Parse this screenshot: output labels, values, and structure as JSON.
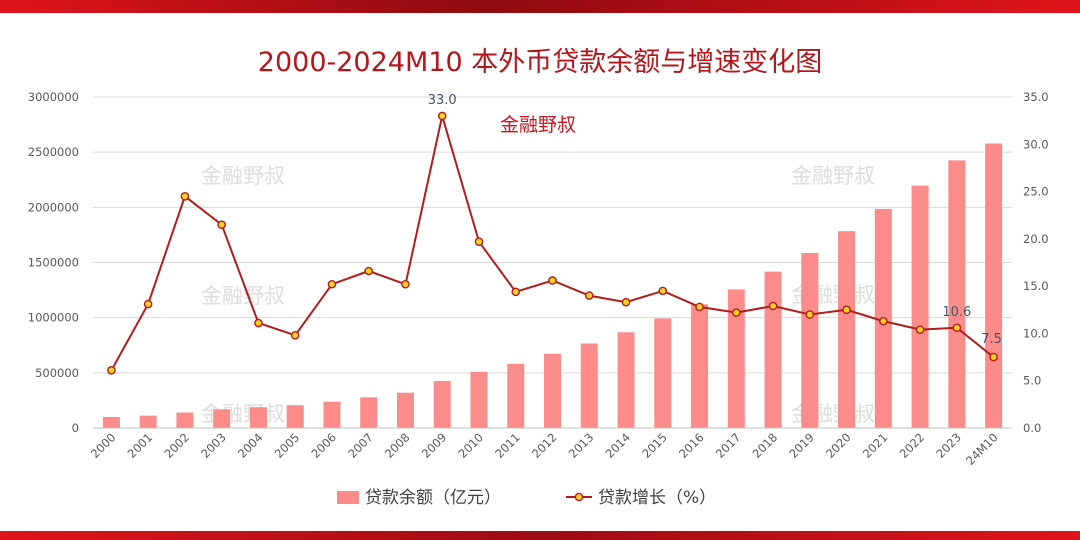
{
  "colors": {
    "frame_red": "#c8161d",
    "title": "#b3161b",
    "bar": "#fb8c8a",
    "line": "#b11d1d",
    "marker_fill": "#ffd21f",
    "axis_text": "#595959",
    "grid": "#d9d9d9",
    "annotation": "#44546a",
    "watermark": "#d0d0d0"
  },
  "watermark_text": "金融野叔",
  "chart_data": {
    "type": "bar+line",
    "title": "2000-2024M10 本外币贷款余额与增速变化图",
    "subtitle": "金融野叔",
    "categories": [
      "2000",
      "2001",
      "2002",
      "2003",
      "2004",
      "2005",
      "2006",
      "2007",
      "2008",
      "2009",
      "2010",
      "2011",
      "2012",
      "2013",
      "2014",
      "2015",
      "2016",
      "2017",
      "2018",
      "2019",
      "2020",
      "2021",
      "2022",
      "2023",
      "24M10"
    ],
    "series": [
      {
        "name": "贷款余额（亿元）",
        "type": "bar",
        "axis": "left",
        "values": [
          99400,
          112300,
          139800,
          169800,
          188600,
          206800,
          238300,
          277700,
          320000,
          425600,
          509200,
          581900,
          672900,
          766300,
          867900,
          993500,
          1120600,
          1256100,
          1417500,
          1586000,
          1784000,
          1985100,
          2196500,
          2425900,
          2578600
        ]
      },
      {
        "name": "贷款增长（%）",
        "type": "line",
        "axis": "right",
        "values": [
          6.1,
          13.1,
          24.5,
          21.5,
          11.1,
          9.8,
          15.2,
          16.6,
          15.2,
          33.0,
          19.7,
          14.4,
          15.6,
          14.0,
          13.3,
          14.5,
          12.8,
          12.2,
          12.9,
          12.0,
          12.5,
          11.3,
          10.4,
          10.6,
          7.5
        ]
      }
    ],
    "annotations": [
      {
        "category": "2009",
        "label": "33.0"
      },
      {
        "category": "2023",
        "label": "10.6"
      },
      {
        "category": "24M10",
        "label": "7.5"
      }
    ],
    "y_left_ticks": [
      "0",
      "500000",
      "1000000",
      "1500000",
      "2000000",
      "2500000",
      "3000000"
    ],
    "y_right_ticks": [
      "0.0",
      "5.0",
      "10.0",
      "15.0",
      "20.0",
      "25.0",
      "30.0",
      "35.0"
    ],
    "ylim_left": [
      0,
      3000000
    ],
    "ylim_right": [
      0,
      35
    ],
    "grid": true,
    "legend_position": "bottom"
  }
}
